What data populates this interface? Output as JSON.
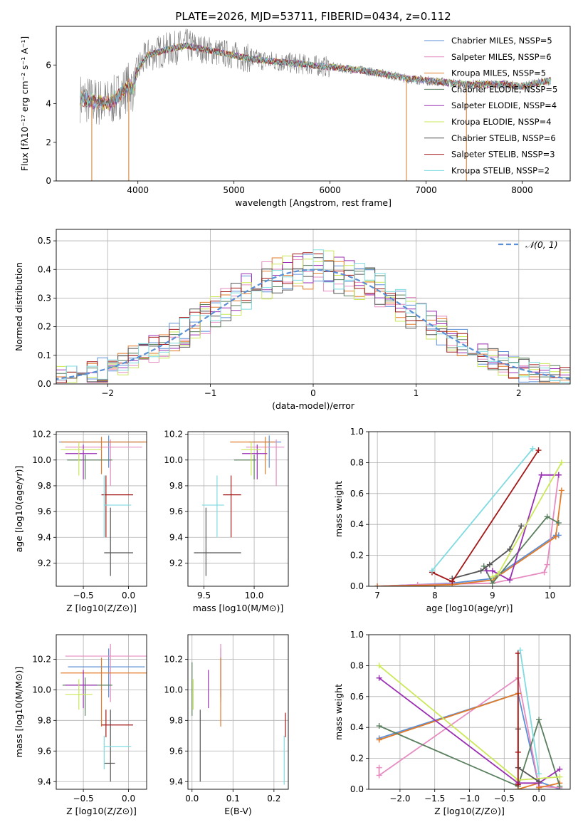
{
  "figure_title": "PLATE=2026, MJD=53711, FIBERID=0434, z=0.112",
  "colors": {
    "chabrier_miles": "#5b8fd6",
    "salpeter_miles": "#e68cc0",
    "kroupa_miles": "#e07b2a",
    "chabrier_elodie": "#5a7f5e",
    "salpeter_elodie": "#9a2fb3",
    "kroupa_elodie": "#cbe85a",
    "chabrier_stelib": "#555555",
    "salpeter_stelib": "#a31818",
    "kroupa_stelib": "#7fdbe0",
    "data": "#808080",
    "normal": "#5b8fd6"
  },
  "chart_data": [
    {
      "type": "line",
      "id": "spectrum",
      "title": "PLATE=2026, MJD=53711, FIBERID=0434, z=0.112",
      "xlabel": "wavelength [Angstrom, rest frame]",
      "ylabel": "Flux [fλ10⁻¹⁷ erg cm⁻² s⁻¹ A⁻¹]",
      "xlim": [
        3150,
        8500
      ],
      "ylim": [
        0,
        8
      ],
      "xticks": [
        4000,
        5000,
        6000,
        7000,
        8000
      ],
      "yticks": [
        0,
        2,
        4,
        6
      ],
      "grid": false,
      "legend": "top-right",
      "legend_entries": [
        "Chabrier MILES, NSSP=5",
        "Salpeter MILES, NSSP=6",
        "Kroupa MILES, NSSP=5",
        "Chabrier ELODIE, NSSP=5",
        "Salpeter ELODIE, NSSP=4",
        "Kroupa ELODIE, NSSP=4",
        "Chabrier STELIB, NSSP=6",
        "Salpeter STELIB, NSSP=3",
        "Kroupa STELIB, NSSP=2"
      ],
      "continuum": {
        "x": [
          3400,
          3550,
          3700,
          3800,
          3900,
          3950,
          4000,
          4100,
          4300,
          4500,
          4800,
          5000,
          5200,
          5400,
          5600,
          5800,
          6000,
          6200,
          6500,
          6800,
          7000,
          7200,
          7400,
          7600,
          7800,
          8000,
          8300
        ],
        "y": [
          4.3,
          4.1,
          4.0,
          4.4,
          4.9,
          4.8,
          5.8,
          6.5,
          6.8,
          7.0,
          6.7,
          6.5,
          6.3,
          6.2,
          6.1,
          6.0,
          5.9,
          5.8,
          5.6,
          5.3,
          5.2,
          5.1,
          5.0,
          5.0,
          5.0,
          4.9,
          5.2
        ]
      },
      "data_range": [
        3400,
        8300
      ]
    },
    {
      "type": "histogram",
      "id": "residuals",
      "xlabel": "(data-model)/error",
      "ylabel": "Normed distribution",
      "xlim": [
        -2.5,
        2.5
      ],
      "ylim": [
        0,
        0.54
      ],
      "xticks": [
        -2,
        -1,
        0,
        1,
        2
      ],
      "yticks": [
        0.0,
        0.1,
        0.2,
        0.3,
        0.4,
        0.5
      ],
      "grid": true,
      "bin_width": 0.1,
      "legend": "top-right",
      "legend_entries": [
        "𝒩(0, 1)"
      ]
    },
    {
      "type": "scatter",
      "id": "age_vs_Z",
      "xlabel": "Z [log10(Z/Z⊙)]",
      "ylabel": "age  [log10(age/yr)]",
      "xlim": [
        -0.8,
        0.2
      ],
      "ylim": [
        9.02,
        10.22
      ],
      "xticks": [
        -0.5,
        0.0
      ],
      "yticks": [
        9.2,
        9.4,
        9.6,
        9.8,
        10.0,
        10.2
      ],
      "grid": true,
      "points": [
        {
          "model": "chabrier_miles",
          "x": -0.22,
          "xerr": [
            0.55,
            0.4
          ],
          "y": 10.14,
          "yerr": [
            0.2,
            0.05
          ]
        },
        {
          "model": "salpeter_miles",
          "x": -0.2,
          "xerr": [
            0.5,
            0.35
          ],
          "y": 10.1,
          "yerr": [
            0.3,
            0.06
          ]
        },
        {
          "model": "kroupa_miles",
          "x": -0.3,
          "xerr": [
            0.45,
            0.5
          ],
          "y": 10.14,
          "yerr": [
            0.25,
            0.04
          ]
        },
        {
          "model": "chabrier_elodie",
          "x": -0.48,
          "xerr": [
            0.2,
            0.3
          ],
          "y": 10.0,
          "yerr": [
            0.15,
            0.04
          ]
        },
        {
          "model": "salpeter_elodie",
          "x": -0.5,
          "xerr": [
            0.2,
            0.15
          ],
          "y": 10.05,
          "yerr": [
            0.2,
            0.07
          ]
        },
        {
          "model": "kroupa_elodie",
          "x": -0.55,
          "xerr": [
            0.2,
            0.25
          ],
          "y": 10.08,
          "yerr": [
            0.2,
            0.06
          ]
        },
        {
          "model": "chabrier_stelib",
          "x": -0.2,
          "xerr": [
            0.07,
            0.25
          ],
          "y": 9.28,
          "yerr": [
            0.18,
            0.35
          ]
        },
        {
          "model": "salpeter_stelib",
          "x": -0.25,
          "xerr": [
            0.05,
            0.3
          ],
          "y": 9.73,
          "yerr": [
            0.33,
            0.15
          ]
        },
        {
          "model": "kroupa_stelib",
          "x": -0.27,
          "xerr": [
            0.0,
            0.3
          ],
          "y": 9.65,
          "yerr": [
            0.25,
            0.23
          ]
        }
      ]
    },
    {
      "type": "scatter",
      "id": "age_vs_mass",
      "xlabel": "mass [log10(M/M⊙)]",
      "ylabel": "",
      "xlim": [
        9.34,
        10.34
      ],
      "ylim": [
        9.02,
        10.22
      ],
      "xticks": [
        9.5,
        10.0
      ],
      "yticks": [
        9.2,
        9.4,
        9.6,
        9.8,
        10.0,
        10.2
      ],
      "grid": true,
      "points": [
        {
          "model": "chabrier_miles",
          "x": 10.15,
          "xerr": [
            0.2,
            0.12
          ],
          "y": 10.14,
          "yerr": [
            0.2,
            0.05
          ]
        },
        {
          "model": "salpeter_miles",
          "x": 10.22,
          "xerr": [
            0.3,
            0.08
          ],
          "y": 10.1,
          "yerr": [
            0.3,
            0.06
          ]
        },
        {
          "model": "kroupa_miles",
          "x": 10.11,
          "xerr": [
            0.35,
            0.1
          ],
          "y": 10.14,
          "yerr": [
            0.25,
            0.04
          ]
        },
        {
          "model": "chabrier_elodie",
          "x": 10.0,
          "xerr": [
            0.2,
            0.02
          ],
          "y": 10.0,
          "yerr": [
            0.15,
            0.04
          ]
        },
        {
          "model": "salpeter_elodie",
          "x": 10.03,
          "xerr": [
            0.15,
            0.1
          ],
          "y": 10.05,
          "yerr": [
            0.2,
            0.07
          ]
        },
        {
          "model": "kroupa_elodie",
          "x": 9.97,
          "xerr": [
            0.1,
            0.1
          ],
          "y": 10.08,
          "yerr": [
            0.2,
            0.06
          ]
        },
        {
          "model": "chabrier_stelib",
          "x": 9.52,
          "xerr": [
            0.12,
            0.35
          ],
          "y": 9.28,
          "yerr": [
            0.18,
            0.35
          ]
        },
        {
          "model": "salpeter_stelib",
          "x": 9.77,
          "xerr": [
            0.08,
            0.1
          ],
          "y": 9.73,
          "yerr": [
            0.33,
            0.15
          ]
        },
        {
          "model": "kroupa_stelib",
          "x": 9.63,
          "xerr": [
            0.15,
            0.07
          ],
          "y": 9.65,
          "yerr": [
            0.25,
            0.23
          ]
        }
      ]
    },
    {
      "type": "line",
      "id": "massweight_vs_age",
      "xlabel": "age  [log10(age/yr)]",
      "ylabel": "mass weight",
      "xlim": [
        6.85,
        10.35
      ],
      "ylim": [
        0,
        1.0
      ],
      "xticks": [
        7,
        8,
        9,
        10
      ],
      "yticks": [
        0.0,
        0.2,
        0.4,
        0.6,
        0.8,
        1.0
      ],
      "grid": true,
      "series": [
        {
          "model": "chabrier_miles",
          "x": [
            7.0,
            8.3,
            9.0,
            10.1,
            10.15
          ],
          "y": [
            0.0,
            0.02,
            0.05,
            0.33,
            0.33
          ]
        },
        {
          "model": "salpeter_miles",
          "x": [
            7.0,
            7.7,
            9.0,
            9.9,
            9.95,
            10.15
          ],
          "y": [
            0.0,
            0.01,
            0.02,
            0.09,
            0.14,
            0.72
          ]
        },
        {
          "model": "kroupa_miles",
          "x": [
            7.0,
            8.3,
            9.0,
            10.1,
            10.2
          ],
          "y": [
            0.0,
            0.01,
            0.04,
            0.32,
            0.62
          ]
        },
        {
          "model": "chabrier_elodie",
          "x": [
            8.85,
            9.0,
            9.95,
            10.15
          ],
          "y": [
            0.13,
            0.02,
            0.45,
            0.41
          ]
        },
        {
          "model": "salpeter_elodie",
          "x": [
            8.9,
            9.0,
            9.3,
            9.85,
            10.15
          ],
          "y": [
            0.1,
            0.1,
            0.04,
            0.72,
            0.72
          ]
        },
        {
          "model": "kroupa_elodie",
          "x": [
            9.0,
            9.1,
            10.2
          ],
          "y": [
            0.06,
            0.08,
            0.8
          ]
        },
        {
          "model": "chabrier_stelib",
          "x": [
            8.3,
            8.8,
            8.95,
            9.3,
            9.5
          ],
          "y": [
            0.05,
            0.1,
            0.14,
            0.24,
            0.39
          ]
        },
        {
          "model": "salpeter_stelib",
          "x": [
            7.95,
            8.3,
            9.8
          ],
          "y": [
            0.09,
            0.03,
            0.88
          ]
        },
        {
          "model": "kroupa_stelib",
          "x": [
            7.95,
            9.7
          ],
          "y": [
            0.1,
            0.89
          ]
        }
      ]
    },
    {
      "type": "scatter",
      "id": "mass_vs_Z",
      "xlabel": "Z [log10(Z/Z⊙)]",
      "ylabel": "mass [log10(M/M⊙)]",
      "xlim": [
        -0.8,
        0.2
      ],
      "ylim": [
        9.35,
        10.36
      ],
      "xticks": [
        -0.5,
        0.0
      ],
      "yticks": [
        9.4,
        9.6,
        9.8,
        10.0,
        10.2
      ],
      "grid": true,
      "points": [
        {
          "model": "chabrier_miles",
          "x": -0.22,
          "xerr": [
            0.45,
            0.4
          ],
          "y": 10.15,
          "yerr": [
            0.2,
            0.12
          ]
        },
        {
          "model": "salpeter_miles",
          "x": -0.2,
          "xerr": [
            0.5,
            0.4
          ],
          "y": 10.22,
          "yerr": [
            0.3,
            0.08
          ]
        },
        {
          "model": "kroupa_miles",
          "x": -0.3,
          "xerr": [
            0.45,
            0.5
          ],
          "y": 10.11,
          "yerr": [
            0.35,
            0.1
          ]
        },
        {
          "model": "chabrier_elodie",
          "x": -0.48,
          "xerr": [
            0.25,
            0.3
          ],
          "y": 10.03,
          "yerr": [
            0.2,
            0.05
          ]
        },
        {
          "model": "salpeter_elodie",
          "x": -0.5,
          "xerr": [
            0.2,
            0.15
          ],
          "y": 10.03,
          "yerr": [
            0.15,
            0.1
          ]
        },
        {
          "model": "kroupa_elodie",
          "x": -0.55,
          "xerr": [
            0.15,
            0.15
          ],
          "y": 9.97,
          "yerr": [
            0.1,
            0.1
          ]
        },
        {
          "model": "chabrier_stelib",
          "x": -0.2,
          "xerr": [
            0.07,
            0.05
          ],
          "y": 9.52,
          "yerr": [
            0.12,
            0.35
          ]
        },
        {
          "model": "salpeter_stelib",
          "x": -0.25,
          "xerr": [
            0.05,
            0.3
          ],
          "y": 9.77,
          "yerr": [
            0.08,
            0.1
          ]
        },
        {
          "model": "kroupa_stelib",
          "x": -0.27,
          "xerr": [
            0.0,
            0.3
          ],
          "y": 9.63,
          "yerr": [
            0.15,
            0.07
          ]
        }
      ]
    },
    {
      "type": "scatter",
      "id": "mass_vs_EBV",
      "xlabel": "E(B-V)",
      "ylabel": "",
      "xlim": [
        -0.01,
        0.235
      ],
      "ylim": [
        9.35,
        10.36
      ],
      "xticks": [
        0.0,
        0.1,
        0.2
      ],
      "yticks": [
        9.4,
        9.6,
        9.8,
        10.0,
        10.2
      ],
      "grid": true,
      "points": [
        {
          "model": "chabrier_miles",
          "x": 0.07,
          "y": 10.15,
          "yerr": [
            0.2,
            0.12
          ]
        },
        {
          "model": "salpeter_miles",
          "x": 0.07,
          "y": 10.22,
          "yerr": [
            0.3,
            0.08
          ]
        },
        {
          "model": "kroupa_miles",
          "x": 0.07,
          "y": 10.11,
          "yerr": [
            0.35,
            0.1
          ]
        },
        {
          "model": "chabrier_elodie",
          "x": 0.0,
          "y": 10.03,
          "yerr": [
            0.2,
            0.15
          ]
        },
        {
          "model": "salpeter_elodie",
          "x": 0.04,
          "y": 10.03,
          "yerr": [
            0.15,
            0.1
          ]
        },
        {
          "model": "kroupa_elodie",
          "x": 0.003,
          "y": 9.97,
          "yerr": [
            0.1,
            0.1
          ]
        },
        {
          "model": "chabrier_stelib",
          "x": 0.02,
          "y": 9.52,
          "yerr": [
            0.12,
            0.35
          ]
        },
        {
          "model": "salpeter_stelib",
          "x": 0.228,
          "y": 9.77,
          "yerr": [
            0.08,
            0.08
          ]
        },
        {
          "model": "kroupa_stelib",
          "x": 0.225,
          "y": 9.63,
          "yerr": [
            0.25,
            0.07
          ]
        }
      ]
    },
    {
      "type": "line",
      "id": "massweight_vs_Z",
      "xlabel": "Z [log10(Z/Z⊙)]",
      "ylabel": "mass weight",
      "xlim": [
        -2.45,
        0.45
      ],
      "ylim": [
        0,
        1.0
      ],
      "xticks": [
        -2.0,
        -1.5,
        -1.0,
        -0.5,
        0.0
      ],
      "yticks": [
        0.0,
        0.2,
        0.4,
        0.6,
        0.8,
        1.0
      ],
      "grid": true,
      "series": [
        {
          "model": "chabrier_miles",
          "x": [
            -2.3,
            -0.3,
            0.0,
            0.0,
            0.3
          ],
          "y": [
            0.33,
            0.62,
            0.02,
            0.05,
            0.0
          ]
        },
        {
          "model": "salpeter_miles",
          "x": [
            -2.3,
            -2.3,
            -0.3,
            0.0,
            0.3
          ],
          "y": [
            0.14,
            0.09,
            0.72,
            0.02,
            0.01
          ]
        },
        {
          "model": "kroupa_miles",
          "x": [
            -2.3,
            -0.3,
            -0.3,
            0.0,
            0.0,
            0.3
          ],
          "y": [
            0.32,
            0.62,
            0.0,
            0.04,
            0.01,
            0.04
          ]
        },
        {
          "model": "chabrier_elodie",
          "x": [
            -2.3,
            -0.3,
            0.0,
            0.3
          ],
          "y": [
            0.41,
            0.02,
            0.45,
            0.02
          ]
        },
        {
          "model": "salpeter_elodie",
          "x": [
            -2.3,
            -0.3,
            0.0,
            0.3
          ],
          "y": [
            0.72,
            0.04,
            0.04,
            0.13
          ]
        },
        {
          "model": "kroupa_elodie",
          "x": [
            -2.3,
            -0.3,
            0.3
          ],
          "y": [
            0.8,
            0.06,
            0.08
          ]
        },
        {
          "model": "chabrier_stelib",
          "x": [
            -0.3,
            -0.3,
            0.0
          ],
          "y": [
            0.39,
            0.14,
            0.05
          ]
        },
        {
          "model": "salpeter_stelib",
          "x": [
            -0.3,
            -0.3,
            -0.3
          ],
          "y": [
            0.88,
            0.24,
            0.03
          ]
        },
        {
          "model": "kroupa_stelib",
          "x": [
            -0.27,
            0.0
          ],
          "y": [
            0.9,
            0.1
          ]
        }
      ]
    }
  ]
}
